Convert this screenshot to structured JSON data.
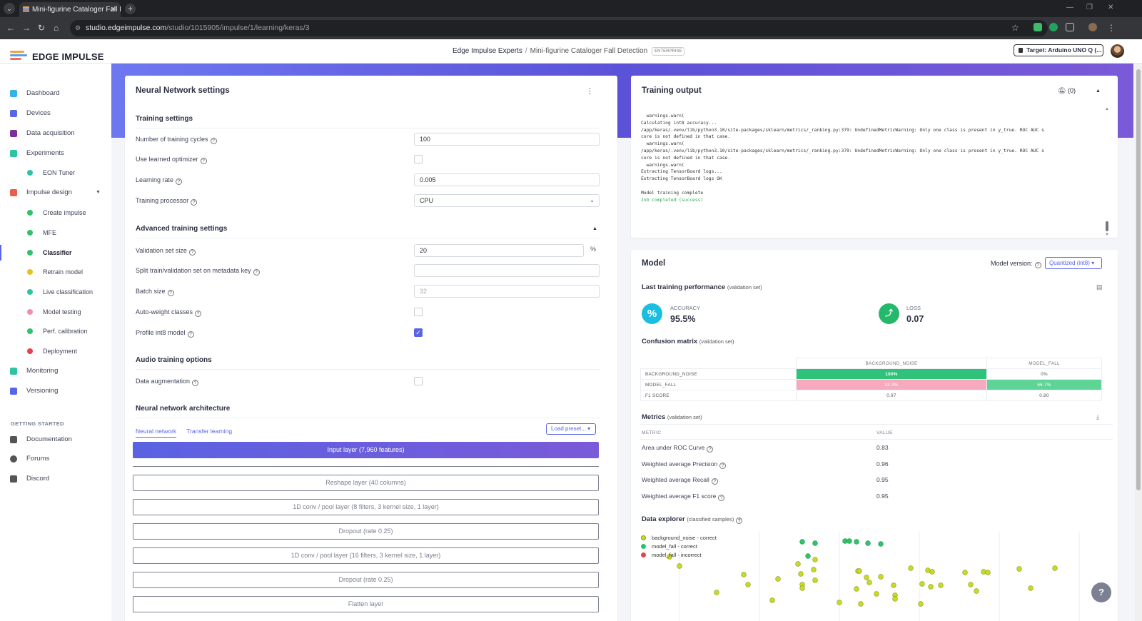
{
  "browser": {
    "tab_title": "Mini-figurine Cataloger Fall Det",
    "url_host": "studio.edgeimpulse.com",
    "url_path": "/studio/1015905/impulse/1/learning/keras/3"
  },
  "header": {
    "logo": "EDGE IMPULSE",
    "org": "Edge Impulse Experts",
    "separator": "/",
    "project": "Mini-figurine Cataloger Fall Detection",
    "badge": "ENTERPRISE",
    "target": "Target: Arduino UNO Q (..."
  },
  "sidebar": {
    "items": [
      {
        "label": "Dashboard",
        "color": "#34b3e8"
      },
      {
        "label": "Devices",
        "color": "#5866e6"
      },
      {
        "label": "Data acquisition",
        "color": "#7b2f9e"
      },
      {
        "label": "Experiments",
        "color": "#2ec4a0"
      },
      {
        "label": "EON Tuner",
        "color": "#2ec4a0"
      },
      {
        "label": "Impulse design",
        "color": "#e8604c"
      },
      {
        "label": "Create impulse",
        "color": "#2fc26b"
      },
      {
        "label": "MFE",
        "color": "#2fc26b"
      },
      {
        "label": "Classifier",
        "color": "#2fc26b"
      },
      {
        "label": "Retrain model",
        "color": "#e8c020"
      },
      {
        "label": "Live classification",
        "color": "#2ec4a0"
      },
      {
        "label": "Model testing",
        "color": "#ef8fa8"
      },
      {
        "label": "Perf. calibration",
        "color": "#2fc26b"
      },
      {
        "label": "Deployment",
        "color": "#e8404c"
      },
      {
        "label": "Monitoring",
        "color": "#2ec4a0"
      },
      {
        "label": "Versioning",
        "color": "#5866e6"
      }
    ],
    "getting_started": "GETTING STARTED",
    "help_items": [
      {
        "label": "Documentation"
      },
      {
        "label": "Forums"
      },
      {
        "label": "Discord"
      }
    ]
  },
  "nn_settings": {
    "title": "Neural Network settings",
    "training_settings": "Training settings",
    "cycles_label": "Number of training cycles",
    "cycles_value": "100",
    "learned_opt_label": "Use learned optimizer",
    "lr_label": "Learning rate",
    "lr_value": "0.005",
    "processor_label": "Training processor",
    "processor_value": "CPU",
    "advanced": "Advanced training settings",
    "val_label": "Validation set size",
    "val_value": "20",
    "val_unit": "%",
    "split_label": "Split train/validation set on metadata key",
    "batch_label": "Batch size",
    "batch_placeholder": "32",
    "autoweight_label": "Auto-weight classes",
    "profile_label": "Profile int8 model",
    "audio": "Audio training options",
    "augment_label": "Data augmentation",
    "arch": "Neural network architecture",
    "tab_nn": "Neural network",
    "tab_tl": "Transfer learning",
    "load_preset": "Load preset...",
    "layers": [
      "Input layer (7,960 features)",
      "Reshape layer (40 columns)",
      "1D conv / pool layer (8 filters, 3 kernel size, 1 layer)",
      "Dropout (rate 0.25)",
      "1D conv / pool layer (16 filters, 3 kernel size, 1 layer)",
      "Dropout (rate 0.25)",
      "Flatten layer"
    ]
  },
  "training_output": {
    "title": "Training output",
    "bell_count": "(0)",
    "log": "  warnings.warn(\nCalculating int8 accuracy...\n/app/keras/.venv/lib/python3.10/site-packages/sklearn/metrics/_ranking.py:379: UndefinedMetricWarning: Only one class is present in y_true. ROC AUC s\ncore is not defined in that case.\n  warnings.warn(\n/app/keras/.venv/lib/python3.10/site-packages/sklearn/metrics/_ranking.py:379: UndefinedMetricWarning: Only one class is present in y_true. ROC AUC s\ncore is not defined in that case.\n  warnings.warn(\nExtracting TensorBoard logs...\nExtracting TensorBoard logs OK\n\nModel training complete\n",
    "success": "Job completed (success)"
  },
  "model": {
    "title": "Model",
    "version_label": "Model version:",
    "version_value": "Quantized (int8)",
    "last_perf": "Last training performance",
    "val_set": "(validation set)",
    "accuracy_label": "ACCURACY",
    "accuracy_value": "95.5%",
    "loss_label": "LOSS",
    "loss_value": "0.07",
    "confusion": "Confusion matrix",
    "cm_cols": [
      "BACKGROUND_NOISE",
      "MODEL_FALL"
    ],
    "cm_rows": [
      {
        "label": "BACKGROUND_NOISE",
        "cells": [
          "100%",
          "0%"
        ]
      },
      {
        "label": "MODEL_FALL",
        "cells": [
          "33.3%",
          "66.7%"
        ]
      },
      {
        "label": "F1 SCORE",
        "cells": [
          "0.97",
          "0.80"
        ]
      }
    ],
    "metrics": "Metrics",
    "metric_col": "METRIC",
    "value_col": "VALUE",
    "metric_rows": [
      {
        "label": "Area under ROC Curve",
        "value": "0.83"
      },
      {
        "label": "Weighted average Precision",
        "value": "0.96"
      },
      {
        "label": "Weighted average Recall",
        "value": "0.95"
      },
      {
        "label": "Weighted average F1 score",
        "value": "0.95"
      }
    ],
    "explorer": "Data explorer",
    "explorer_sub": "(classified samples)",
    "legend": [
      {
        "label": "background_noise - correct",
        "color": "#c8d92a"
      },
      {
        "label": "model_fall - correct",
        "color": "#2fc26b"
      },
      {
        "label": "model_fall - incorrect",
        "color": "#e8404c"
      }
    ]
  },
  "help": "?"
}
